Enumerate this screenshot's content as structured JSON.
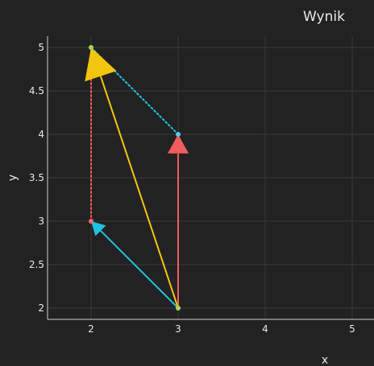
{
  "chart_data": {
    "type": "scatter",
    "title": "Wynik",
    "xlabel": "x",
    "ylabel": "y",
    "xlim": [
      1.5,
      5.25
    ],
    "ylim": [
      1.87,
      5.13
    ],
    "grid": true,
    "legend": "none",
    "x_ticks": [
      "2",
      "3",
      "4",
      "5"
    ],
    "y_ticks": [
      "2",
      "2.5",
      "3",
      "3.5",
      "4",
      "4.5",
      "5"
    ],
    "points": [
      {
        "x": 3,
        "y": 2,
        "color": "#a6d854"
      },
      {
        "x": 2,
        "y": 3,
        "color": "#ff6b6b"
      },
      {
        "x": 3,
        "y": 4,
        "color": "#4dd0e1"
      },
      {
        "x": 2,
        "y": 5,
        "color": "#a6d854"
      }
    ],
    "arrows": [
      {
        "from": [
          3,
          2
        ],
        "to": [
          3,
          4
        ],
        "color": "#f25c5c",
        "style": "solid"
      },
      {
        "from": [
          3,
          2
        ],
        "to": [
          2,
          3
        ],
        "color": "#22c4e0",
        "style": "solid"
      },
      {
        "from": [
          3,
          2
        ],
        "to": [
          2,
          5
        ],
        "color": "#f2c50f",
        "style": "solid"
      }
    ],
    "dotted_lines": [
      {
        "from": [
          2,
          3
        ],
        "to": [
          2,
          5
        ],
        "color": "#f25c5c"
      },
      {
        "from": [
          3,
          4
        ],
        "to": [
          2,
          5
        ],
        "color": "#22c4e0"
      }
    ]
  }
}
